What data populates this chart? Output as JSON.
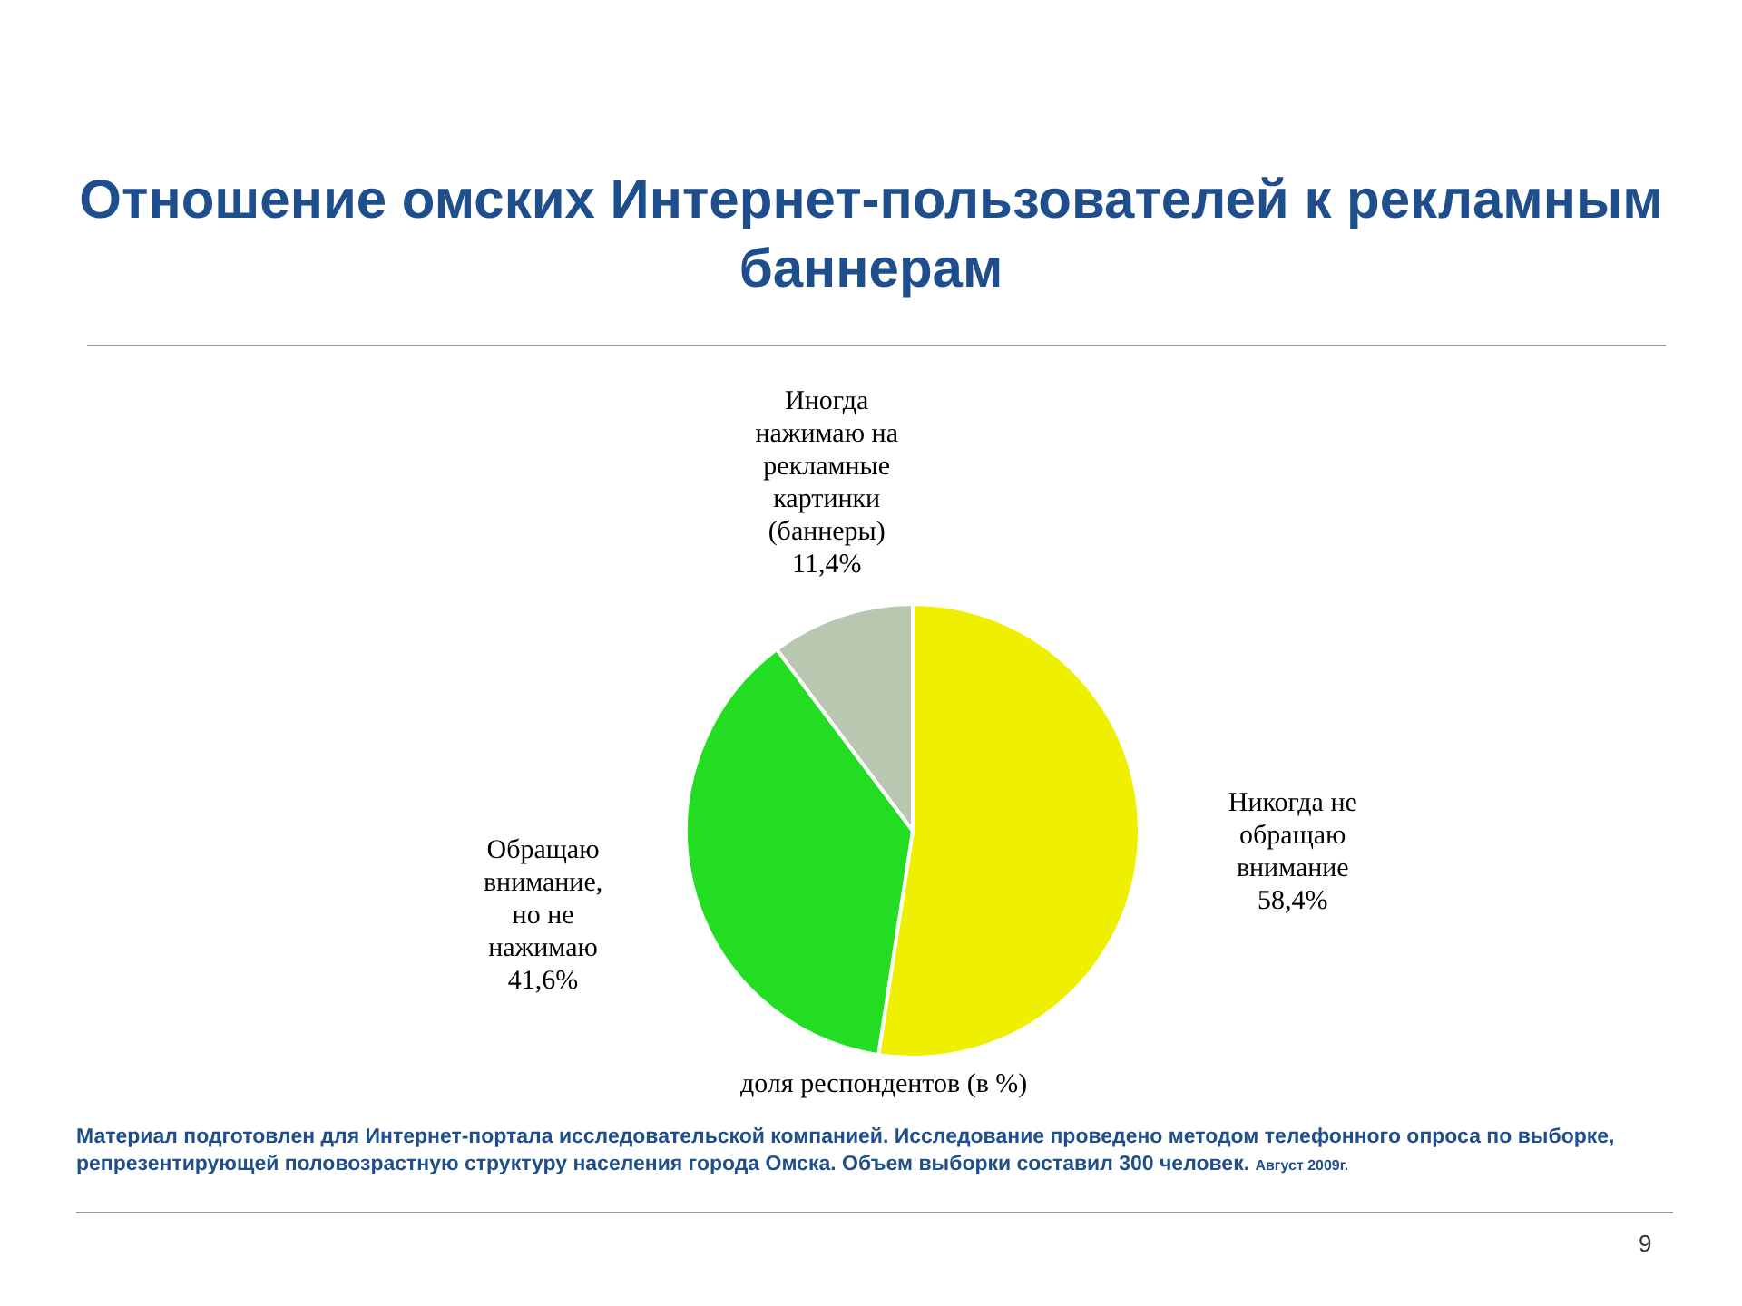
{
  "chart_data": {
    "type": "pie",
    "title": "Отношение омских Интернет-пользователей к рекламным баннерам",
    "categories": [
      "Никогда не обращаю внимание",
      "Обращаю внимание, но не нажимаю",
      "Иногда нажимаю на рекламные картинки (баннеры)"
    ],
    "values": [
      58.4,
      41.6,
      11.4
    ],
    "value_labels": [
      "58,4%",
      "41,6%",
      "11,4%"
    ],
    "colors": [
      "#eef000",
      "#22dd22",
      "#b8c8b0"
    ],
    "annotations": [
      "доля респондентов (в %)",
      "Материал подготовлен для Интернет-портала исследовательской компанией. Исследование проведено методом телефонного опроса по выборке, репрезентирующей половозрастную структуру населения города Омска. Объем выборки составил 300 человек.",
      "Август 2009г.",
      "9"
    ]
  }
}
